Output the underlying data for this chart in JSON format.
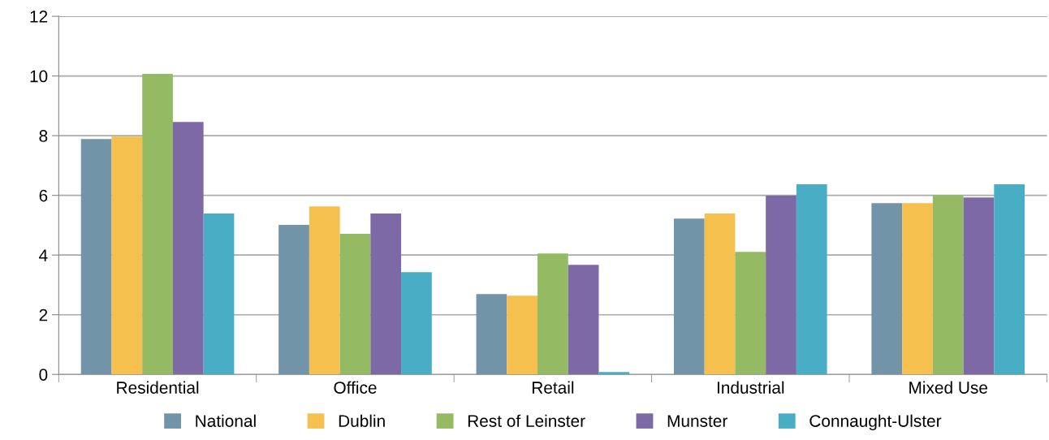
{
  "chart_data": {
    "type": "bar",
    "categories": [
      "Residential",
      "Office",
      "Retail",
      "Industrial",
      "Mixed Use"
    ],
    "series": [
      {
        "name": "National",
        "color": "#7294a8",
        "values": [
          7.89,
          5.01,
          2.69,
          5.22,
          5.74
        ]
      },
      {
        "name": "Dublin",
        "color": "#f6c04f",
        "values": [
          7.97,
          5.63,
          2.64,
          5.39,
          5.74
        ]
      },
      {
        "name": "Rest of Leinster",
        "color": "#94bb63",
        "values": [
          10.07,
          4.71,
          4.05,
          4.11,
          6.01
        ]
      },
      {
        "name": "Munster",
        "color": "#7d69a6",
        "values": [
          8.46,
          5.39,
          3.67,
          5.99,
          5.93
        ]
      },
      {
        "name": "Connaught-Ulster",
        "color": "#49adc6",
        "values": [
          5.39,
          3.43,
          0.08,
          6.37,
          6.37
        ]
      }
    ],
    "ylim": [
      0,
      12
    ],
    "yticks": [
      0,
      2,
      4,
      6,
      8,
      10,
      12
    ],
    "grid": "y",
    "legend": "bottom"
  }
}
